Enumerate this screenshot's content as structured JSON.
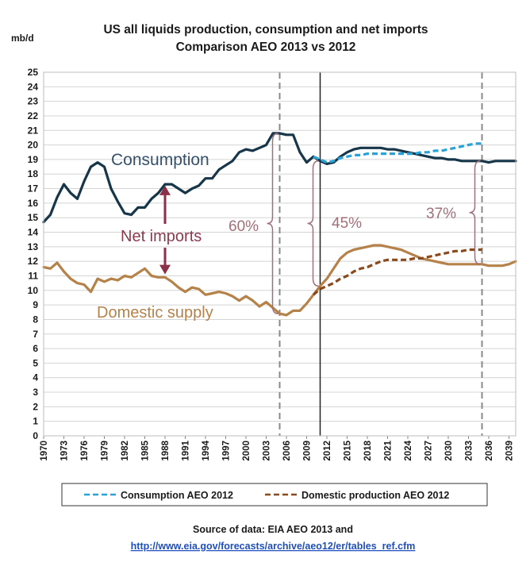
{
  "chart_data": {
    "type": "line",
    "title": "US all liquids production, consumption and net imports",
    "subtitle": "Comparison AEO 2013 vs 2012",
    "ylabel": "mb/d",
    "xlabel": "",
    "ylim": [
      0,
      25
    ],
    "xlim": [
      1970,
      2040
    ],
    "yticks": [
      0,
      1,
      2,
      3,
      4,
      5,
      6,
      7,
      8,
      9,
      10,
      11,
      12,
      13,
      14,
      15,
      16,
      17,
      18,
      19,
      20,
      21,
      22,
      23,
      24,
      25
    ],
    "xticks": [
      "1970",
      "1973",
      "1976",
      "1979",
      "1982",
      "1985",
      "1988",
      "1991",
      "1994",
      "1997",
      "2000",
      "2003",
      "2006",
      "2009",
      "2012",
      "2015",
      "2018",
      "2021",
      "2024",
      "2027",
      "2030",
      "2033",
      "2036",
      "2039"
    ],
    "grid": "horizontal",
    "legend_position": "bottom",
    "series": [
      {
        "key": "consumption2013",
        "color": "#17364a",
        "style": "solid",
        "x": [
          1970,
          1971,
          1972,
          1973,
          1974,
          1975,
          1976,
          1977,
          1978,
          1979,
          1980,
          1981,
          1982,
          1983,
          1984,
          1985,
          1986,
          1987,
          1988,
          1989,
          1990,
          1991,
          1992,
          1993,
          1994,
          1995,
          1996,
          1997,
          1998,
          1999,
          2000,
          2001,
          2002,
          2003,
          2004,
          2005,
          2006,
          2007,
          2008,
          2009,
          2010,
          2011,
          2012,
          2013,
          2014,
          2015,
          2016,
          2017,
          2018,
          2019,
          2020,
          2021,
          2022,
          2023,
          2024,
          2025,
          2026,
          2027,
          2028,
          2029,
          2030,
          2031,
          2032,
          2033,
          2034,
          2035,
          2036,
          2037,
          2038,
          2039,
          2040
        ],
        "y": [
          14.7,
          15.2,
          16.4,
          17.3,
          16.7,
          16.3,
          17.5,
          18.5,
          18.8,
          18.5,
          17.0,
          16.1,
          15.3,
          15.2,
          15.7,
          15.7,
          16.3,
          16.7,
          17.3,
          17.3,
          17.0,
          16.7,
          17.0,
          17.2,
          17.7,
          17.7,
          18.3,
          18.6,
          18.9,
          19.5,
          19.7,
          19.6,
          19.8,
          20.0,
          20.8,
          20.8,
          20.7,
          20.7,
          19.5,
          18.8,
          19.2,
          18.9,
          18.7,
          18.8,
          19.2,
          19.5,
          19.7,
          19.8,
          19.8,
          19.8,
          19.8,
          19.7,
          19.7,
          19.6,
          19.5,
          19.4,
          19.3,
          19.2,
          19.1,
          19.1,
          19.0,
          19.0,
          18.9,
          18.9,
          18.9,
          18.9,
          18.8,
          18.9,
          18.9,
          18.9,
          18.9
        ]
      },
      {
        "key": "domestic2013",
        "color": "#b5824a",
        "style": "solid",
        "x": [
          1970,
          1971,
          1972,
          1973,
          1974,
          1975,
          1976,
          1977,
          1978,
          1979,
          1980,
          1981,
          1982,
          1983,
          1984,
          1985,
          1986,
          1987,
          1988,
          1989,
          1990,
          1991,
          1992,
          1993,
          1994,
          1995,
          1996,
          1997,
          1998,
          1999,
          2000,
          2001,
          2002,
          2003,
          2004,
          2005,
          2006,
          2007,
          2008,
          2009,
          2010,
          2011,
          2012,
          2013,
          2014,
          2015,
          2016,
          2017,
          2018,
          2019,
          2020,
          2021,
          2022,
          2023,
          2024,
          2025,
          2026,
          2027,
          2028,
          2029,
          2030,
          2031,
          2032,
          2033,
          2034,
          2035,
          2036,
          2037,
          2038,
          2039,
          2040
        ],
        "y": [
          11.6,
          11.5,
          11.9,
          11.3,
          10.8,
          10.5,
          10.4,
          9.9,
          10.8,
          10.6,
          10.8,
          10.7,
          11.0,
          10.9,
          11.2,
          11.5,
          11.0,
          10.9,
          10.9,
          10.6,
          10.2,
          9.9,
          10.2,
          10.1,
          9.7,
          9.8,
          9.9,
          9.8,
          9.6,
          9.3,
          9.6,
          9.3,
          8.9,
          9.2,
          8.8,
          8.4,
          8.3,
          8.6,
          8.6,
          9.1,
          9.7,
          10.3,
          10.8,
          11.5,
          12.2,
          12.6,
          12.8,
          12.9,
          13.0,
          13.1,
          13.1,
          13.0,
          12.9,
          12.8,
          12.6,
          12.4,
          12.2,
          12.1,
          12.0,
          11.9,
          11.8,
          11.8,
          11.8,
          11.8,
          11.8,
          11.8,
          11.7,
          11.7,
          11.7,
          11.8,
          12.0
        ]
      },
      {
        "key": "consumption2012",
        "name": "Consumption AEO 2012",
        "color": "#29a3d6",
        "style": "dashed",
        "x": [
          2010,
          2011,
          2012,
          2013,
          2014,
          2015,
          2016,
          2017,
          2018,
          2019,
          2020,
          2021,
          2022,
          2023,
          2024,
          2025,
          2026,
          2027,
          2028,
          2029,
          2030,
          2031,
          2032,
          2033,
          2034,
          2035
        ],
        "y": [
          19.2,
          19.0,
          18.8,
          18.9,
          19.1,
          19.2,
          19.3,
          19.3,
          19.4,
          19.4,
          19.4,
          19.4,
          19.4,
          19.4,
          19.4,
          19.4,
          19.5,
          19.5,
          19.6,
          19.6,
          19.7,
          19.8,
          19.9,
          20.0,
          20.1,
          20.1
        ]
      },
      {
        "key": "domestic2012",
        "name": "Domestic production AEO 2012",
        "color": "#8a4a1c",
        "style": "dashed",
        "x": [
          2010,
          2011,
          2012,
          2013,
          2014,
          2015,
          2016,
          2017,
          2018,
          2019,
          2020,
          2021,
          2022,
          2023,
          2024,
          2025,
          2026,
          2027,
          2028,
          2029,
          2030,
          2031,
          2032,
          2033,
          2034,
          2035
        ],
        "y": [
          9.7,
          10.1,
          10.3,
          10.5,
          10.8,
          11.0,
          11.3,
          11.5,
          11.6,
          11.8,
          12.0,
          12.1,
          12.1,
          12.1,
          12.1,
          12.2,
          12.2,
          12.3,
          12.4,
          12.5,
          12.6,
          12.7,
          12.7,
          12.8,
          12.8,
          12.8
        ]
      }
    ],
    "vlines": [
      {
        "x": 2005,
        "style": "dashed",
        "color": "#8a8a8a"
      },
      {
        "x": 2011,
        "style": "solid",
        "color": "#222222"
      },
      {
        "x": 2035,
        "style": "dashed",
        "color": "#8a8a8a"
      }
    ],
    "annotations": {
      "consumption_label": "Consumption",
      "net_imports_label": "Net imports",
      "domestic_label": "Domestic supply",
      "pct_2005": "60%",
      "pct_2011": "45%",
      "pct_2035": "37%"
    },
    "braces": [
      {
        "x": 2005,
        "top": 20.8,
        "bottom": 8.4
      },
      {
        "x": 2011,
        "top": 18.9,
        "bottom": 10.3
      },
      {
        "x": 2035,
        "top": 18.9,
        "bottom": 11.8
      }
    ],
    "arrow": {
      "x": 1988,
      "top": 17.2,
      "bottom": 11.1
    }
  },
  "legend": {
    "consumption2012": "Consumption AEO 2012",
    "domestic2012": "Domestic production AEO 2012"
  },
  "source": {
    "line1": "Source of data: EIA AEO 2013 and",
    "link": "http://www.eia.gov/forecasts/archive/aeo12/er/tables_ref.cfm"
  },
  "colors": {
    "annotation": "#a0707a",
    "arrow": "#8c2f48",
    "grid": "#d4d4d4"
  }
}
